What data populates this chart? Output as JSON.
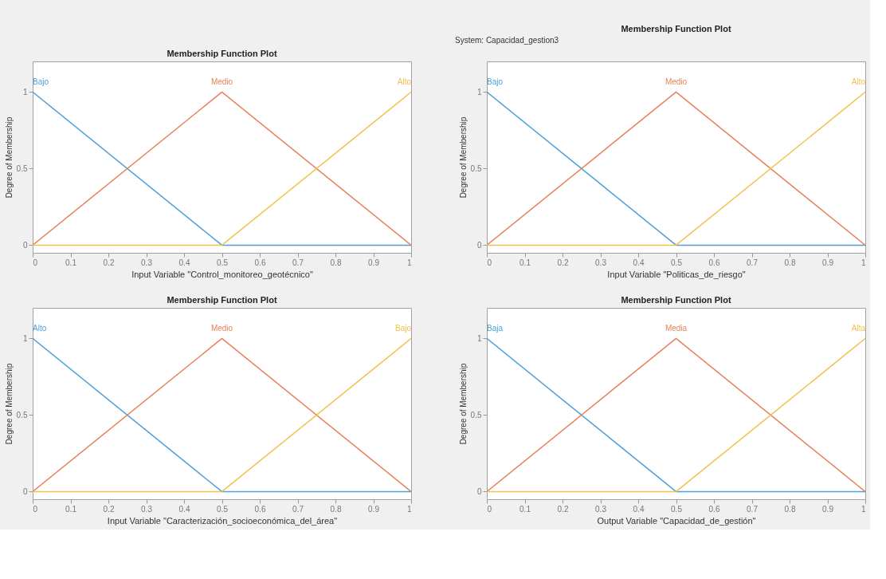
{
  "chart_data": [
    {
      "type": "line",
      "title": "Membership Function Plot",
      "xlabel": "Input Variable \"Control_monitoreo_geotécnico\"",
      "ylabel": "Degree of Membership",
      "x": [
        0,
        0.5,
        1
      ],
      "xlim": [
        0,
        1
      ],
      "ylim": [
        -0.05,
        1.2
      ],
      "xticks": [
        0,
        0.1,
        0.2,
        0.3,
        0.4,
        0.5,
        0.6,
        0.7,
        0.8,
        0.9,
        1
      ],
      "yticks": [
        0,
        0.5,
        1
      ],
      "series": [
        {
          "name": "Bajo",
          "color": "#4da0db",
          "values": [
            1,
            0,
            0
          ]
        },
        {
          "name": "Medio",
          "color": "#e8825a",
          "values": [
            0,
            1,
            0
          ]
        },
        {
          "name": "Alto",
          "color": "#f2c14e",
          "values": [
            0,
            0,
            1
          ]
        }
      ]
    },
    {
      "type": "line",
      "title": "Membership Function Plot",
      "annotations": [
        "System: Capacidad_gestion3"
      ],
      "xlabel": "Input Variable \"Politicas_de_riesgo\"",
      "ylabel": "Degree of Membership",
      "x": [
        0,
        0.5,
        1
      ],
      "xlim": [
        0,
        1
      ],
      "ylim": [
        -0.05,
        1.2
      ],
      "xticks": [
        0,
        0.1,
        0.2,
        0.3,
        0.4,
        0.5,
        0.6,
        0.7,
        0.8,
        0.9,
        1
      ],
      "yticks": [
        0,
        0.5,
        1
      ],
      "series": [
        {
          "name": "Bajo",
          "color": "#4da0db",
          "values": [
            1,
            0,
            0
          ]
        },
        {
          "name": "Medio",
          "color": "#e8825a",
          "values": [
            0,
            1,
            0
          ]
        },
        {
          "name": "Alto",
          "color": "#f2c14e",
          "values": [
            0,
            0,
            1
          ]
        }
      ]
    },
    {
      "type": "line",
      "title": "Membership Function Plot",
      "xlabel": "Input Variable \"Caracterización_socioeconómica_del_área\"",
      "ylabel": "Degree of Membership",
      "x": [
        0,
        0.5,
        1
      ],
      "xlim": [
        0,
        1
      ],
      "ylim": [
        -0.05,
        1.2
      ],
      "xticks": [
        0,
        0.1,
        0.2,
        0.3,
        0.4,
        0.5,
        0.6,
        0.7,
        0.8,
        0.9,
        1
      ],
      "yticks": [
        0,
        0.5,
        1
      ],
      "series": [
        {
          "name": "Alto",
          "color": "#4da0db",
          "values": [
            1,
            0,
            0
          ]
        },
        {
          "name": "Medio",
          "color": "#e8825a",
          "values": [
            0,
            1,
            0
          ]
        },
        {
          "name": "Bajo",
          "color": "#f2c14e",
          "values": [
            0,
            0,
            1
          ]
        }
      ]
    },
    {
      "type": "line",
      "title": "Membership Function Plot",
      "xlabel": "Output Variable \"Capacidad_de_gestión\"",
      "ylabel": "Degree of Membership",
      "x": [
        0,
        0.5,
        1
      ],
      "xlim": [
        0,
        1
      ],
      "ylim": [
        -0.05,
        1.2
      ],
      "xticks": [
        0,
        0.1,
        0.2,
        0.3,
        0.4,
        0.5,
        0.6,
        0.7,
        0.8,
        0.9,
        1
      ],
      "yticks": [
        0,
        0.5,
        1
      ],
      "series": [
        {
          "name": "Baja",
          "color": "#4da0db",
          "values": [
            1,
            0,
            0
          ]
        },
        {
          "name": "Media",
          "color": "#e8825a",
          "values": [
            0,
            1,
            0
          ]
        },
        {
          "name": "Alta",
          "color": "#f2c14e",
          "values": [
            0,
            0,
            1
          ]
        }
      ]
    }
  ]
}
